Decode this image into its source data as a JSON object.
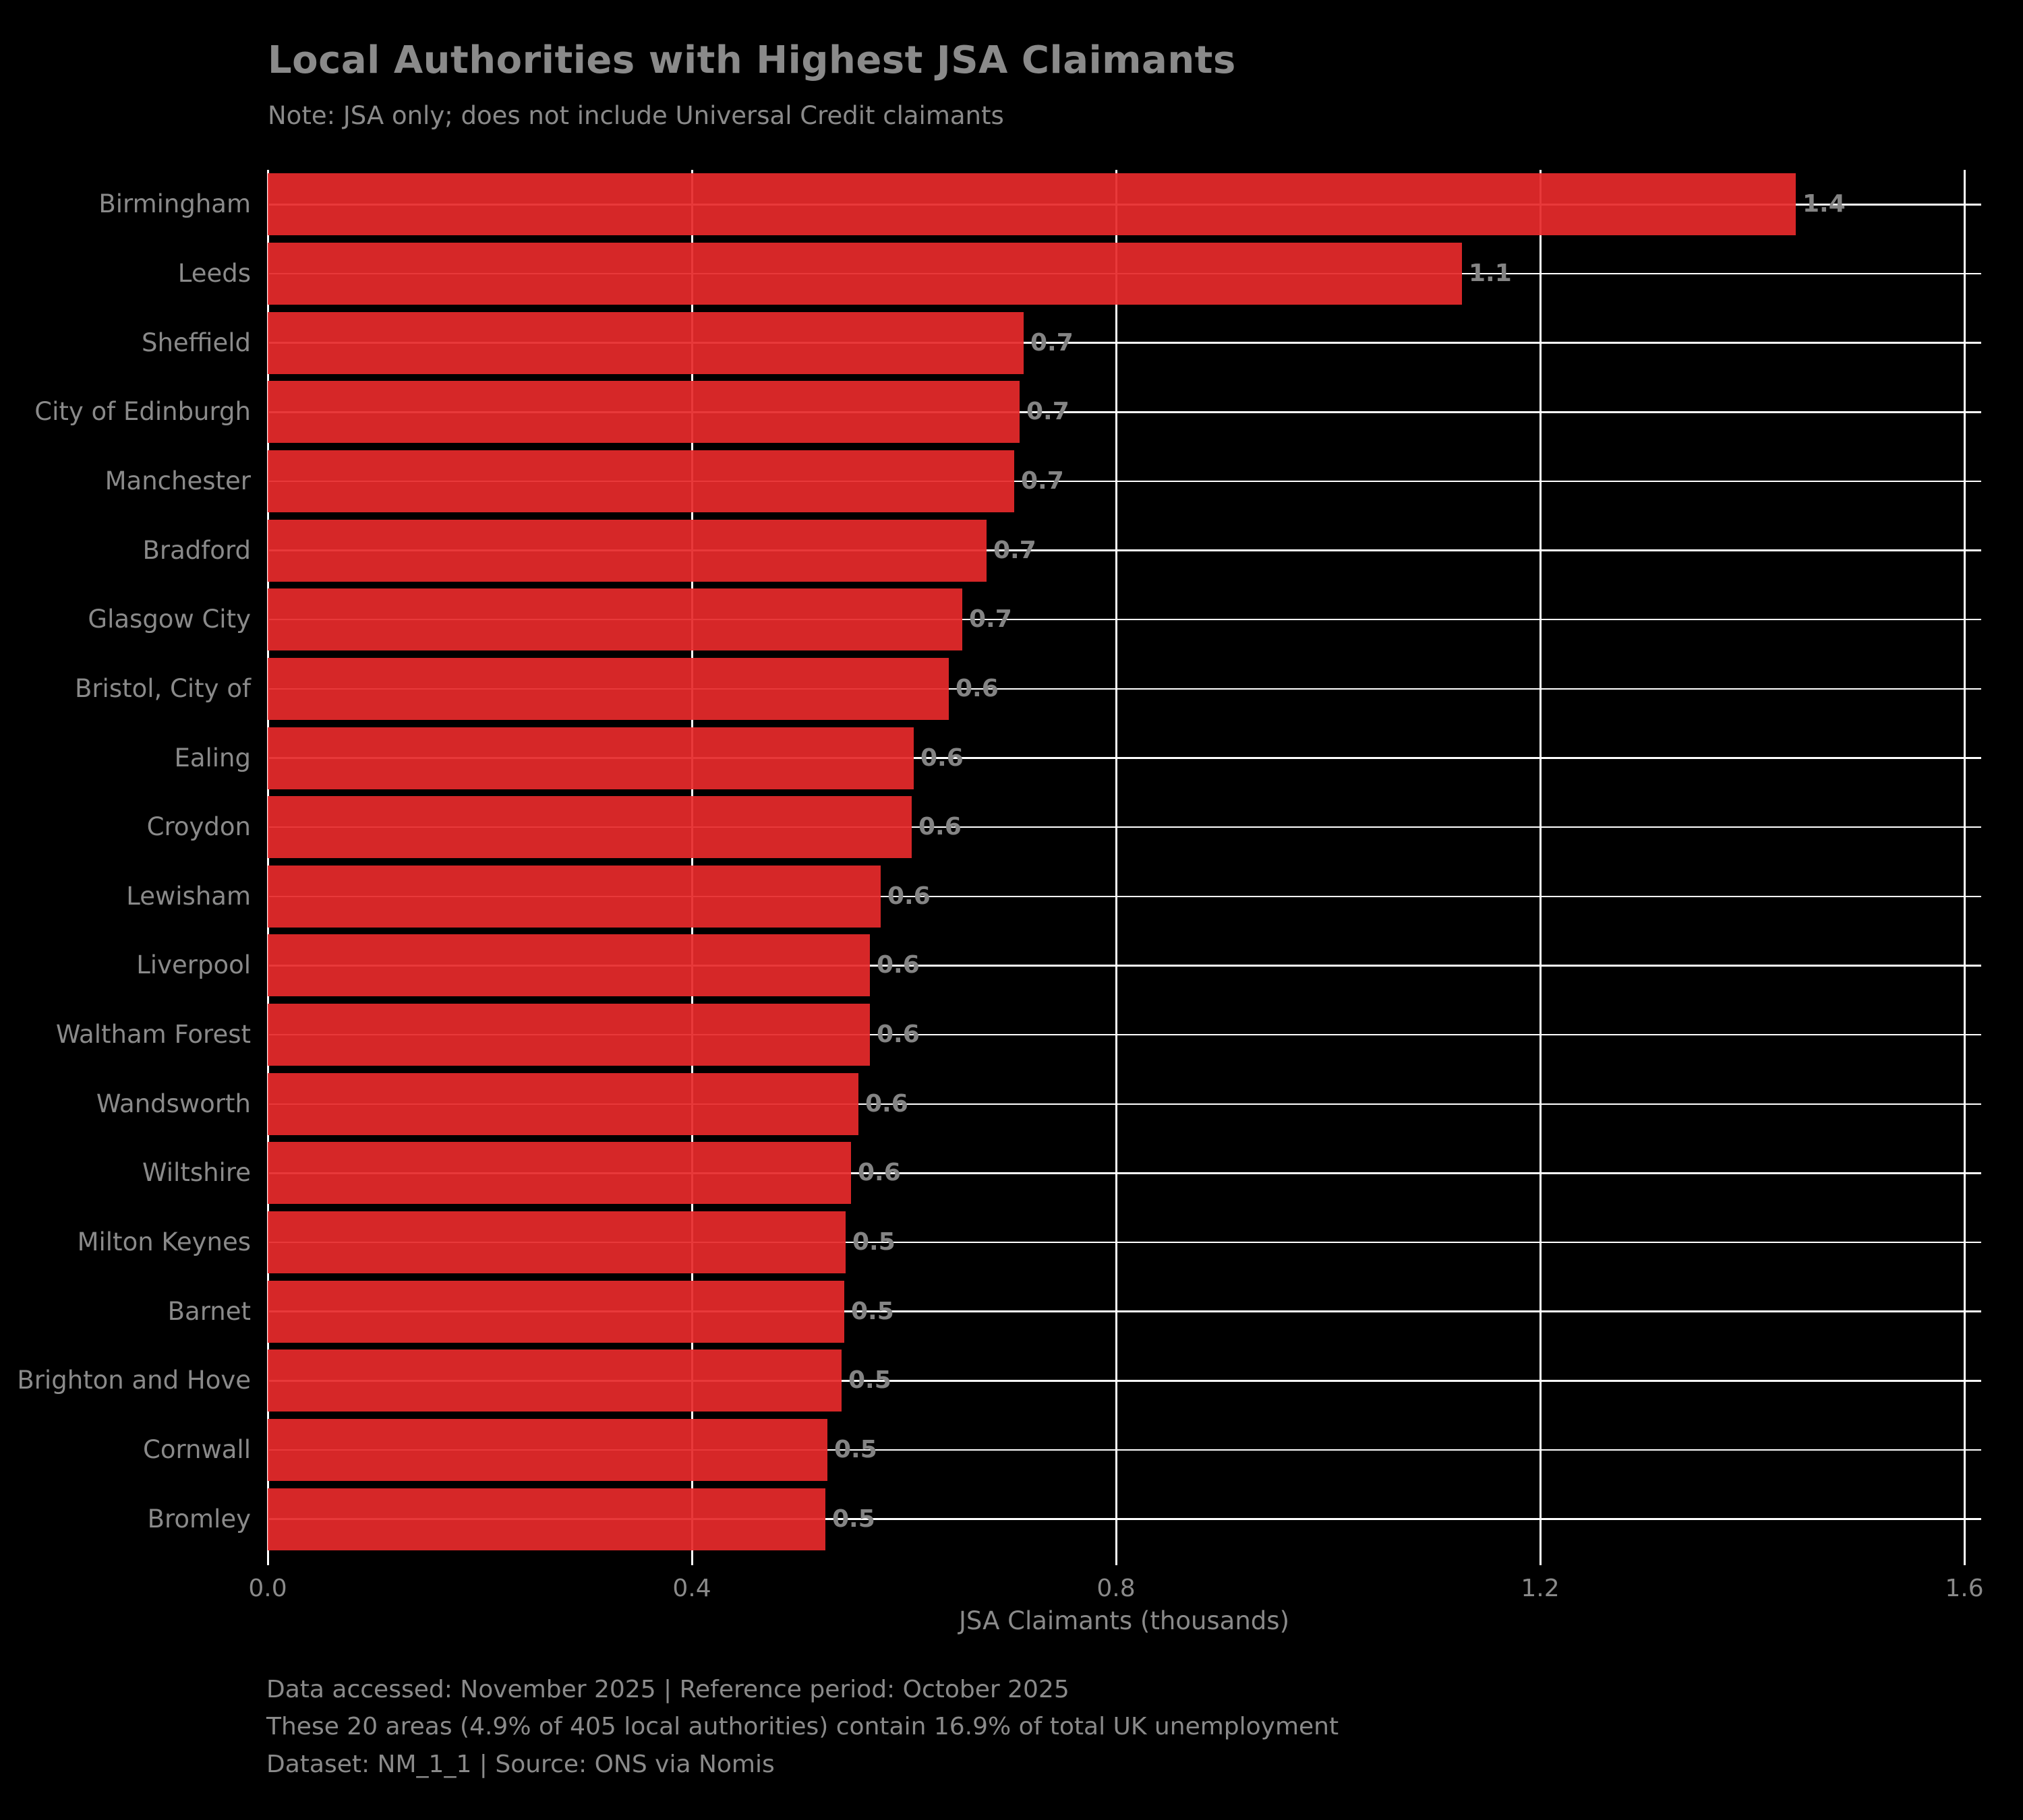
{
  "chart_data": {
    "type": "bar",
    "orientation": "horizontal",
    "title": "Local Authorities with Highest JSA Claimants",
    "subtitle": "Note: JSA only; does not include Universal Credit claimants",
    "xlabel": "JSA Claimants (thousands)",
    "xlim": [
      0.0,
      1.6
    ],
    "xticks": [
      "0.0",
      "0.4",
      "0.8",
      "1.2",
      "1.6"
    ],
    "grid": "on",
    "legend": "none",
    "categories": [
      "Birmingham",
      "Leeds",
      "Sheffield",
      "City of Edinburgh",
      "Manchester",
      "Bradford",
      "Glasgow City",
      "Bristol, City of",
      "Ealing",
      "Croydon",
      "Lewisham",
      "Liverpool",
      "Waltham Forest",
      "Wandsworth",
      "Wiltshire",
      "Milton Keynes",
      "Barnet",
      "Brighton and Hove",
      "Cornwall",
      "Bromley"
    ],
    "values": [
      1.441,
      1.126,
      0.713,
      0.709,
      0.704,
      0.678,
      0.655,
      0.642,
      0.609,
      0.607,
      0.578,
      0.568,
      0.568,
      0.557,
      0.55,
      0.545,
      0.544,
      0.541,
      0.528,
      0.526
    ],
    "bar_labels": [
      "1.4",
      "1.1",
      "0.7",
      "0.7",
      "0.7",
      "0.7",
      "0.7",
      "0.6",
      "0.6",
      "0.6",
      "0.6",
      "0.6",
      "0.6",
      "0.6",
      "0.6",
      "0.5",
      "0.5",
      "0.5",
      "0.5",
      "0.5"
    ],
    "colors": {
      "background": "#000000",
      "bar": "#d62728",
      "gridline": "#ffffff",
      "text": "#8a8a8a"
    },
    "footer": [
      "Data accessed: November 2025 | Reference period: October 2025",
      "These 20 areas (4.9% of 405 local authorities) contain 16.9% of total UK unemployment",
      "Dataset: NM_1_1 | Source: ONS via Nomis"
    ]
  }
}
